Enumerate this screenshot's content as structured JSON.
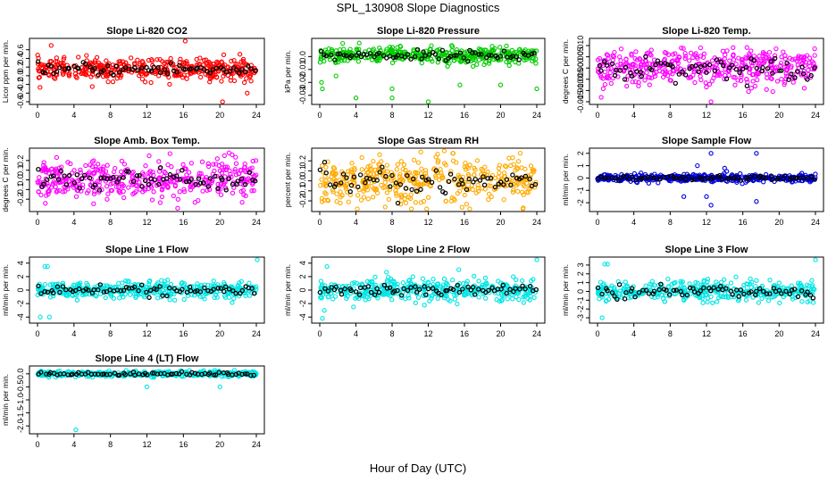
{
  "figure": {
    "title": "SPL_130908  Slope Diagnostics",
    "xlabel": "Hour of Day (UTC)"
  },
  "chart_data": [
    {
      "type": "scatter",
      "title": "Slope Li-820 CO2",
      "ylabel": "Licor ppm per min.",
      "xlim": [
        0,
        24
      ],
      "ylim": [
        -0.6,
        0.8
      ],
      "yticks": [
        -0.6,
        -0.4,
        -0.2,
        0.0,
        0.2,
        0.4,
        0.6
      ],
      "ytick_labels": [
        "-0.6",
        "-0.4",
        "-0.2",
        "0.0",
        "0.2",
        "0.4",
        "0.6"
      ],
      "xticks": [
        0,
        4,
        8,
        12,
        16,
        20,
        24
      ],
      "color": "#ff0000",
      "center": 0.15,
      "spread": 0.12,
      "outliers": [
        [
          1.5,
          0.7
        ],
        [
          16.2,
          0.82
        ],
        [
          6,
          -0.25
        ],
        [
          23,
          -0.4
        ],
        [
          20.3,
          -0.6
        ]
      ]
    },
    {
      "type": "scatter",
      "title": "Slope Li-820 Pressure",
      "ylabel": "kPa per min.",
      "xlim": [
        0,
        24
      ],
      "ylim": [
        -0.035,
        0.012
      ],
      "yticks": [
        -0.03,
        -0.02,
        -0.01,
        0.0
      ],
      "ytick_labels": [
        "-0.03",
        "-0.02",
        "-0.01",
        "0.0"
      ],
      "xticks": [
        0,
        4,
        8,
        12,
        16,
        20,
        24
      ],
      "color": "#00cc00",
      "center": 0.001,
      "spread": 0.003,
      "outliers": [
        [
          0.2,
          -0.02
        ],
        [
          0.3,
          -0.025
        ],
        [
          1.8,
          -0.015
        ],
        [
          4,
          -0.032
        ],
        [
          8,
          -0.032
        ],
        [
          8,
          -0.025
        ],
        [
          12,
          -0.035
        ],
        [
          15.5,
          -0.022
        ],
        [
          24,
          -0.025
        ],
        [
          20,
          -0.022
        ]
      ]
    },
    {
      "type": "scatter",
      "title": "Slope Li-820 Temp.",
      "ylabel": "degrees C per min.",
      "xlim": [
        0,
        24
      ],
      "ylim": [
        -0.015,
        0.012
      ],
      "yticks": [
        -0.015,
        -0.01,
        -0.005,
        0.0,
        0.005,
        0.01
      ],
      "ytick_labels": [
        "-0.015",
        "-0.010",
        "-0.005",
        "0.000",
        "0.005",
        "0.010"
      ],
      "xticks": [
        0,
        4,
        8,
        12,
        16,
        20,
        24
      ],
      "color": "#ff00ff",
      "center": 0.0,
      "spread": 0.004,
      "outliers": [
        [
          0.4,
          -0.013
        ],
        [
          12.5,
          -0.016
        ]
      ]
    },
    {
      "type": "scatter",
      "title": "Slope Amb. Box Temp.",
      "ylabel": "degrees C per min.",
      "xlim": [
        0,
        24
      ],
      "ylim": [
        -0.3,
        0.3
      ],
      "yticks": [
        -0.2,
        -0.1,
        0.0,
        0.1,
        0.2
      ],
      "ytick_labels": [
        "-0.2",
        "-0.1",
        "0.0",
        "0.1",
        "0.2"
      ],
      "xticks": [
        0,
        4,
        8,
        12,
        16,
        20,
        24
      ],
      "color": "#ff00ff",
      "center": 0.0,
      "spread": 0.1,
      "outliers": [
        [
          21,
          0.28
        ],
        [
          20.5,
          0.25
        ]
      ]
    },
    {
      "type": "scatter",
      "title": "Slope Gas Stream RH",
      "ylabel": "percent per min.",
      "xlim": [
        0,
        24
      ],
      "ylim": [
        -0.28,
        0.3
      ],
      "yticks": [
        -0.2,
        -0.1,
        0.0,
        0.1,
        0.2
      ],
      "ytick_labels": [
        "-0.2",
        "-0.1",
        "0.0",
        "0.1",
        "0.2"
      ],
      "xticks": [
        0,
        4,
        8,
        12,
        16,
        20,
        24
      ],
      "color": "#ffaa00",
      "center": 0.0,
      "spread": 0.11,
      "outliers": [
        [
          22.5,
          -0.27
        ]
      ]
    },
    {
      "type": "scatter",
      "title": "Slope Sample Flow",
      "ylabel": "ml/min per min.",
      "xlim": [
        0,
        24
      ],
      "ylim": [
        -2.5,
        2.2
      ],
      "yticks": [
        -2,
        -1,
        0,
        1,
        2
      ],
      "ytick_labels": [
        "-2",
        "-1",
        "0",
        "1",
        "2"
      ],
      "xticks": [
        0,
        4,
        8,
        12,
        16,
        20,
        24
      ],
      "color": "#0000dd",
      "center": 0.0,
      "spread": 0.15,
      "outliers": [
        [
          12.5,
          2.0
        ],
        [
          17.5,
          2.0
        ],
        [
          12.5,
          -2.2
        ],
        [
          17.5,
          -1.9
        ],
        [
          9.5,
          -1.5
        ],
        [
          12,
          -1.5
        ],
        [
          11,
          1.0
        ],
        [
          14,
          0.8
        ]
      ]
    },
    {
      "type": "scatter",
      "title": "Slope Line 1 Flow",
      "ylabel": "ml/min per min.",
      "xlim": [
        0,
        24
      ],
      "ylim": [
        -4.5,
        4.5
      ],
      "yticks": [
        -4,
        -2,
        0,
        2,
        4
      ],
      "ytick_labels": [
        "-4",
        "-2",
        "0",
        "2",
        "4"
      ],
      "xticks": [
        0,
        4,
        8,
        12,
        16,
        20,
        24
      ],
      "color": "#00e5e5",
      "center": 0.0,
      "spread": 0.6,
      "outliers": [
        [
          0.3,
          -4.0
        ],
        [
          0.8,
          3.5
        ],
        [
          1.1,
          3.5
        ],
        [
          24.1,
          4.5
        ],
        [
          1.3,
          -4.0
        ]
      ]
    },
    {
      "type": "scatter",
      "title": "Slope Line 2 Flow",
      "ylabel": "ml/min per min.",
      "xlim": [
        0,
        24
      ],
      "ylim": [
        -4.5,
        4.5
      ],
      "yticks": [
        -4,
        -2,
        0,
        2,
        4
      ],
      "ytick_labels": [
        "-4",
        "-2",
        "0",
        "2",
        "4"
      ],
      "xticks": [
        0,
        4,
        8,
        12,
        16,
        20,
        24
      ],
      "color": "#00e5e5",
      "center": 0.0,
      "spread": 0.8,
      "outliers": [
        [
          0.3,
          -4.2
        ],
        [
          0.8,
          3.5
        ],
        [
          24.0,
          4.5
        ],
        [
          0.5,
          -3.0
        ]
      ]
    },
    {
      "type": "scatter",
      "title": "Slope Line 3 Flow",
      "ylabel": "ml/min per min.",
      "xlim": [
        0,
        24
      ],
      "ylim": [
        -3.3,
        3.6
      ],
      "yticks": [
        -3,
        -2,
        -1,
        0,
        1,
        2,
        3
      ],
      "ytick_labels": [
        "-3",
        "-2",
        "-1",
        "0",
        "1",
        "2",
        "3"
      ],
      "xticks": [
        0,
        4,
        8,
        12,
        16,
        20,
        24
      ],
      "color": "#00e5e5",
      "center": 0.0,
      "spread": 0.55,
      "outliers": [
        [
          0.8,
          3.1
        ],
        [
          1.1,
          3.1
        ],
        [
          24.0,
          3.6
        ],
        [
          0.5,
          -3.0
        ]
      ]
    },
    {
      "type": "scatter",
      "title": "Slope Line 4 (LT) Flow",
      "ylabel": "ml/min per min.",
      "xlim": [
        0,
        24
      ],
      "ylim": [
        -2.2,
        0.2
      ],
      "yticks": [
        -2.0,
        -1.5,
        -1.0,
        -0.5,
        0.0
      ],
      "ytick_labels": [
        "-2.0",
        "-1.5",
        "-1.0",
        "-0.5",
        "0.0"
      ],
      "xticks": [
        0,
        4,
        8,
        12,
        16,
        20,
        24
      ],
      "color": "#00e5e5",
      "center": 0.0,
      "spread": 0.05,
      "outliers": [
        [
          4.2,
          -2.15
        ],
        [
          12,
          -0.5
        ],
        [
          20,
          -0.5
        ]
      ]
    }
  ]
}
